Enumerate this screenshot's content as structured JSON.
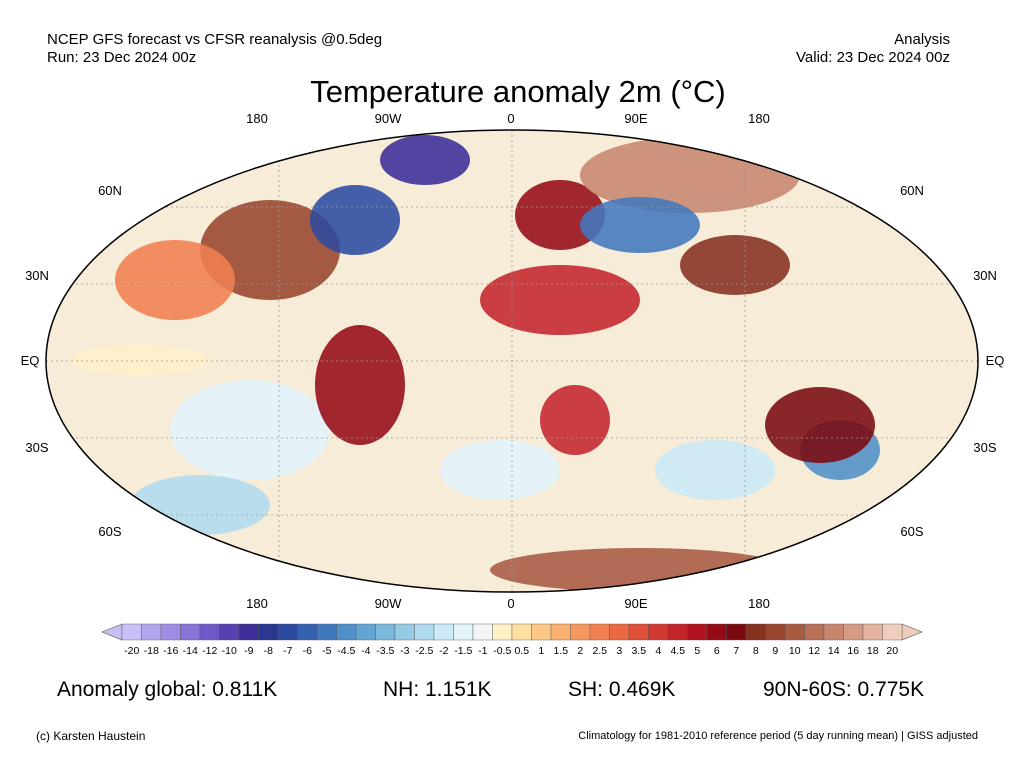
{
  "header": {
    "model_line": "NCEP GFS forecast vs CFSR reanalysis @0.5deg",
    "run_line": "Run: 23 Dec 2024 00z",
    "mode": "Analysis",
    "valid_line": "Valid: 23 Dec 2024 00z"
  },
  "title": "Temperature anomaly 2m (°C)",
  "map": {
    "projection": "Robinson",
    "lon_labels_top": [
      "180",
      "90W",
      "0",
      "90E",
      "180"
    ],
    "lon_labels_bottom": [
      "180",
      "90W",
      "0",
      "90E",
      "180"
    ],
    "lat_labels_left": [
      "60N",
      "30N",
      "EQ",
      "30S",
      "60S"
    ],
    "lat_labels_right": [
      "60N",
      "30N",
      "EQ",
      "30S",
      "60S"
    ],
    "anomaly_patches": [
      {
        "region": "North America interior",
        "value": 8
      },
      {
        "region": "Labrador / Hudson Bay",
        "value": -8
      },
      {
        "region": "Greenland",
        "value": -10
      },
      {
        "region": "Europe",
        "value": 5
      },
      {
        "region": "Siberia",
        "value": 12
      },
      {
        "region": "Central Asia",
        "value": -6
      },
      {
        "region": "Tibet / China",
        "value": 7
      },
      {
        "region": "Sahara / Arabia",
        "value": 4
      },
      {
        "region": "Southern Africa",
        "value": 4
      },
      {
        "region": "Australia interior",
        "value": -5
      },
      {
        "region": "Australia coast",
        "value": 6
      },
      {
        "region": "Southeast Pacific",
        "value": -2
      },
      {
        "region": "Southern Ocean (Pacific)",
        "value": -3
      },
      {
        "region": "South Atlantic",
        "value": -2
      },
      {
        "region": "South Indian Ocean",
        "value": -2.5
      },
      {
        "region": "Tropical Pacific",
        "value": -1
      },
      {
        "region": "Antarctica coast",
        "value": 9
      },
      {
        "region": "Northeast Pacific",
        "value": 2
      },
      {
        "region": "South America",
        "value": 5
      }
    ]
  },
  "colorbar": {
    "labels": [
      "-20",
      "-18",
      "-16",
      "-14",
      "-12",
      "-10",
      "-9",
      "-8",
      "-7",
      "-6",
      "-5",
      "-4.5",
      "-4",
      "-3.5",
      "-3",
      "-2.5",
      "-2",
      "-1.5",
      "-1",
      "-0.5",
      "0.5",
      "1",
      "1.5",
      "2",
      "2.5",
      "3",
      "3.5",
      "4",
      "4.5",
      "5",
      "6",
      "7",
      "8",
      "9",
      "10",
      "12",
      "14",
      "16",
      "18",
      "20"
    ],
    "colors": [
      "#c8c0f4",
      "#b4a6ec",
      "#a08ce2",
      "#8a72d8",
      "#7058c8",
      "#5840b0",
      "#3c2c98",
      "#283890",
      "#2c4aa0",
      "#3660b0",
      "#4278be",
      "#5090c8",
      "#62a4d2",
      "#7ab8dc",
      "#94cae4",
      "#b0dbee",
      "#cbe9f6",
      "#e2f3fa",
      "#f4f4f4",
      "#fdf1c8",
      "#fde0a0",
      "#fcc886",
      "#fab070",
      "#f59860",
      "#f08050",
      "#ea6844",
      "#e0503a",
      "#d43832",
      "#c4242a",
      "#b01420",
      "#960a16",
      "#7a0a10",
      "#863020",
      "#98442e",
      "#a85a42",
      "#b87058",
      "#c8866e",
      "#d69c86",
      "#e4b4a0",
      "#f0ccbc"
    ]
  },
  "stats": {
    "global": "Anomaly global: 0.811K",
    "nh": "NH: 1.151K",
    "sh": "SH: 0.469K",
    "polar": "90N-60S: 0.775K"
  },
  "footer": {
    "credit": "(c) Karsten Haustein",
    "note": "Climatology for 1981-2010 reference period (5 day running mean) | GISS adjusted"
  }
}
